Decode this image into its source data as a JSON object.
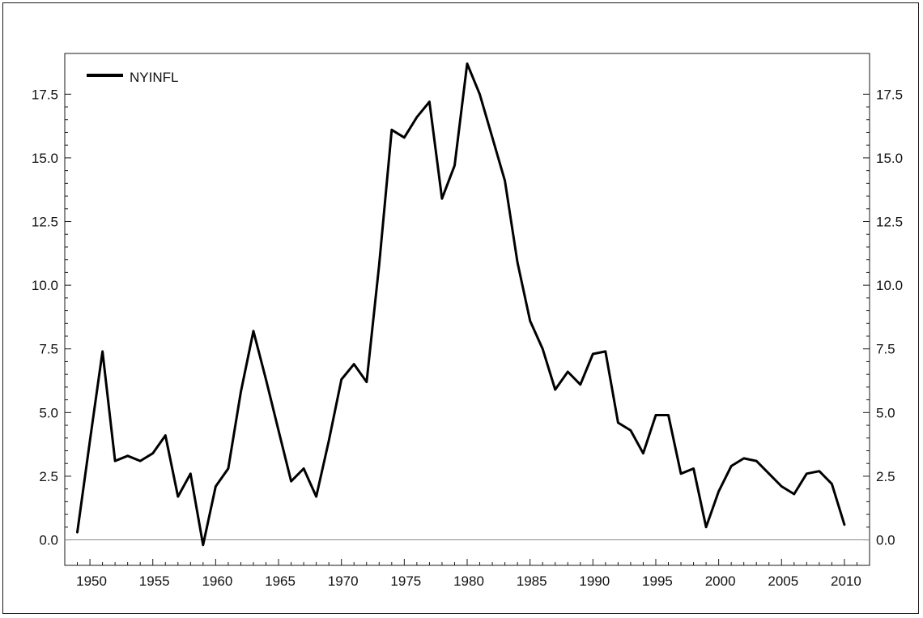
{
  "chart_data": {
    "type": "line",
    "title": "",
    "xlabel": "",
    "ylabel": "",
    "xlim": [
      1948,
      2012
    ],
    "ylim": [
      -1.0,
      19.1
    ],
    "x_ticks": [
      1950,
      1955,
      1960,
      1965,
      1970,
      1975,
      1980,
      1985,
      1990,
      1995,
      2000,
      2005,
      2010
    ],
    "x_tick_labels": [
      "1950",
      "1955",
      "1960",
      "1965",
      "1970",
      "1975",
      "1980",
      "1985",
      "1990",
      "1995",
      "2000",
      "2005",
      "2010"
    ],
    "y_ticks": [
      0.0,
      2.5,
      5.0,
      7.5,
      10.0,
      12.5,
      15.0,
      17.5
    ],
    "y_tick_labels": [
      "0.0",
      "2.5",
      "5.0",
      "7.5",
      "10.0",
      "12.5",
      "15.0",
      "17.5"
    ],
    "y_axis_both_sides": true,
    "zero_line": true,
    "grid": false,
    "legend_position": "top-left",
    "line_color": "#000000",
    "series": [
      {
        "name": "NYINFL",
        "x": [
          1949,
          1950,
          1951,
          1952,
          1953,
          1954,
          1955,
          1956,
          1957,
          1958,
          1959,
          1960,
          1961,
          1962,
          1963,
          1964,
          1965,
          1966,
          1967,
          1968,
          1969,
          1970,
          1971,
          1972,
          1973,
          1974,
          1975,
          1976,
          1977,
          1978,
          1979,
          1980,
          1981,
          1982,
          1983,
          1984,
          1985,
          1986,
          1987,
          1988,
          1989,
          1990,
          1991,
          1992,
          1993,
          1994,
          1995,
          1996,
          1997,
          1998,
          1999,
          2000,
          2001,
          2002,
          2003,
          2004,
          2005,
          2006,
          2007,
          2008,
          2009,
          2010
        ],
        "values": [
          0.3,
          3.9,
          7.4,
          3.1,
          3.3,
          3.1,
          3.4,
          4.1,
          1.7,
          2.6,
          -0.2,
          2.1,
          2.8,
          5.8,
          8.2,
          6.3,
          4.3,
          2.3,
          2.8,
          1.7,
          3.9,
          6.3,
          6.9,
          6.2,
          10.8,
          16.1,
          15.8,
          16.6,
          17.2,
          13.4,
          14.7,
          18.7,
          17.5,
          15.8,
          14.1,
          10.9,
          8.6,
          7.5,
          5.9,
          6.6,
          6.1,
          7.3,
          7.4,
          4.6,
          4.3,
          3.4,
          4.9,
          4.9,
          2.6,
          2.8,
          0.5,
          1.9,
          2.9,
          3.2,
          3.1,
          2.6,
          2.1,
          1.8,
          2.6,
          2.7,
          2.2,
          0.6
        ]
      }
    ]
  }
}
